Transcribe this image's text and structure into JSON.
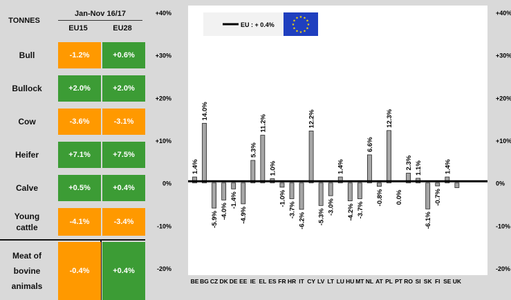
{
  "table": {
    "unit_label": "TONNES",
    "period": "Jan-Nov 16/17",
    "columns": [
      "EU15",
      "EU28"
    ],
    "rows": [
      {
        "label": "Bull",
        "eu15": "-1.2%",
        "eu28": "+0.6%",
        "eu15_color": "orange",
        "eu28_color": "green"
      },
      {
        "label": "Bullock",
        "eu15": "+2.0%",
        "eu28": "+2.0%",
        "eu15_color": "green",
        "eu28_color": "green"
      },
      {
        "label": "Cow",
        "eu15": "-3.6%",
        "eu28": "-3.1%",
        "eu15_color": "orange",
        "eu28_color": "orange"
      },
      {
        "label": "Heifer",
        "eu15": "+7.1%",
        "eu28": "+7.5%",
        "eu15_color": "green",
        "eu28_color": "green"
      },
      {
        "label": "Calve",
        "eu15": "+0.5%",
        "eu28": "+0.4%",
        "eu15_color": "green",
        "eu28_color": "green"
      },
      {
        "label": "Young cattle",
        "eu15": "-4.1%",
        "eu28": "-3.4%",
        "eu15_color": "orange",
        "eu28_color": "orange"
      },
      {
        "label": "Meat of bovine animals",
        "eu15": "-0.4%",
        "eu28": "+0.4%",
        "eu15_color": "orange",
        "eu28_color": "green"
      }
    ],
    "colors": {
      "orange": "#ff9900",
      "green": "#3c9c35"
    }
  },
  "chart_data": {
    "type": "bar",
    "categories": [
      "BE",
      "BG",
      "CZ",
      "DK",
      "DE",
      "EE",
      "IE",
      "EL",
      "ES",
      "FR",
      "HR",
      "IT",
      "CY",
      "LV",
      "LT",
      "LU",
      "HU",
      "MT",
      "NL",
      "AT",
      "PL",
      "PT",
      "RO",
      "SI",
      "SK",
      "FI",
      "SE",
      "UK"
    ],
    "values": [
      1.4,
      14.0,
      -5.9,
      -4.0,
      -1.4,
      -4.9,
      5.3,
      11.2,
      1.0,
      -1.0,
      -3.7,
      -6.2,
      12.2,
      -5.3,
      -3.0,
      1.4,
      -4.2,
      -3.7,
      6.6,
      -0.8,
      12.3,
      0.0,
      2.3,
      1.1,
      -6.1,
      -0.7,
      1.4,
      -1.1
    ],
    "data_labels": [
      "1.4%",
      "14.0%",
      "-5.9%",
      "-4.0%",
      "-1.4%",
      "-4.9%",
      "5.3%",
      "11.2%",
      "1.0%",
      "-1.0%",
      "-3.7%",
      "-6.2%",
      "12.2%",
      "-5.3%",
      "-3.0%",
      "1.4%",
      "-4.2%",
      "-3.7%",
      "6.6%",
      "-0.8%",
      "12.3%",
      "0.0%",
      "2.3%",
      "1.1%",
      "-6.1%",
      "-0.7%",
      "1.4%",
      "-1.1%"
    ],
    "label_shown": [
      true,
      true,
      true,
      true,
      true,
      true,
      true,
      true,
      true,
      true,
      true,
      true,
      true,
      true,
      true,
      true,
      true,
      true,
      true,
      true,
      true,
      true,
      true,
      true,
      true,
      true,
      true,
      false
    ],
    "yticks": [
      40,
      30,
      20,
      10,
      0,
      -10,
      -20
    ],
    "ytick_labels": [
      "+40%",
      "+30%",
      "+20%",
      "+10%",
      "0%",
      "-10%",
      "-20%"
    ],
    "right_ytick_labels": [
      "+40%",
      "+30%",
      "+20%",
      "+10%",
      "0%",
      "-10%",
      "-20%"
    ],
    "ylim": [
      -20,
      40
    ],
    "reference_line": {
      "value": 0.4,
      "label": "EU : + 0.4%"
    },
    "legend_position": "top",
    "flag_icon": "eu-flag-icon",
    "colors": {
      "bar": "#a6a6a6",
      "bar_edge": "#222222",
      "plot_bg": "#ffffff",
      "flag": "#1f3fbf",
      "star": "#ffdd00"
    }
  }
}
